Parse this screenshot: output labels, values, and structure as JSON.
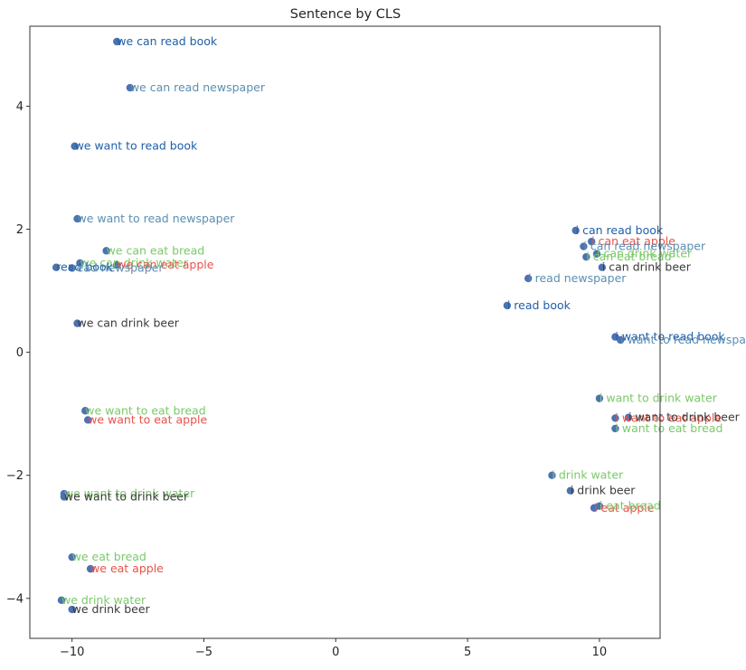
{
  "chart_data": {
    "type": "scatter",
    "title": "Sentence by CLS",
    "xlabel": "",
    "ylabel": "",
    "xlim": [
      -11.6,
      12.3
    ],
    "ylim": [
      -4.65,
      5.3
    ],
    "xticks": [
      -10,
      -5,
      0,
      5,
      10
    ],
    "yticks": [
      -4,
      -2,
      0,
      2,
      4
    ],
    "grid": false,
    "marker_color": "#4c72b0",
    "points": [
      {
        "label": "we can read book",
        "x": -8.3,
        "y": 5.05,
        "color": "#1f5fa8"
      },
      {
        "label": "we can read newspaper",
        "x": -7.8,
        "y": 4.3,
        "color": "#5b8fb0"
      },
      {
        "label": "we want to read book",
        "x": -9.9,
        "y": 3.35,
        "color": "#1f5fa8"
      },
      {
        "label": "we want to read newspaper",
        "x": -9.8,
        "y": 2.17,
        "color": "#5b8fb0"
      },
      {
        "label": "we can eat bread",
        "x": -8.7,
        "y": 1.65,
        "color": "#7cc86a"
      },
      {
        "label": "we can drink water",
        "x": -9.7,
        "y": 1.45,
        "color": "#7cc86a"
      },
      {
        "label": "we can eat apple",
        "x": -8.3,
        "y": 1.42,
        "color": "#e8534a"
      },
      {
        "label": "read book",
        "x": -10.6,
        "y": 1.38,
        "color": "#1f5fa8"
      },
      {
        "label": "read newspaper",
        "x": -10.0,
        "y": 1.37,
        "color": "#5b8fb0"
      },
      {
        "label": "we can drink beer",
        "x": -9.8,
        "y": 0.47,
        "color": "#3a3a3a"
      },
      {
        "label": "we want to eat bread",
        "x": -9.5,
        "y": -0.95,
        "color": "#7cc86a"
      },
      {
        "label": "we want to eat apple",
        "x": -9.4,
        "y": -1.1,
        "color": "#e8534a"
      },
      {
        "label": "we want to drink water",
        "x": -10.3,
        "y": -2.3,
        "color": "#7cc86a"
      },
      {
        "label": "we want to drink beer",
        "x": -10.3,
        "y": -2.35,
        "color": "#3a3a3a"
      },
      {
        "label": "we eat bread",
        "x": -10.0,
        "y": -3.33,
        "color": "#7cc86a"
      },
      {
        "label": "we eat apple",
        "x": -9.3,
        "y": -3.52,
        "color": "#e8534a"
      },
      {
        "label": "we drink water",
        "x": -10.4,
        "y": -4.03,
        "color": "#7cc86a"
      },
      {
        "label": "we drink beer",
        "x": -10.0,
        "y": -4.18,
        "color": "#3a3a3a"
      },
      {
        "label": "i can read book",
        "x": 9.1,
        "y": 1.98,
        "color": "#1f5fa8"
      },
      {
        "label": "i can eat apple",
        "x": 9.7,
        "y": 1.8,
        "color": "#e8534a"
      },
      {
        "label": "i can read newspaper",
        "x": 9.4,
        "y": 1.72,
        "color": "#5b8fb0"
      },
      {
        "label": "i can eat bread",
        "x": 9.5,
        "y": 1.55,
        "color": "#7cc86a"
      },
      {
        "label": "i can drink water",
        "x": 9.9,
        "y": 1.6,
        "color": "#7cc86a"
      },
      {
        "label": "i can drink beer",
        "x": 10.1,
        "y": 1.38,
        "color": "#3a3a3a"
      },
      {
        "label": "i read newspaper",
        "x": 7.3,
        "y": 1.2,
        "color": "#5b8fb0"
      },
      {
        "label": "i read book",
        "x": 6.5,
        "y": 0.76,
        "color": "#1f5fa8"
      },
      {
        "label": "i want to read book",
        "x": 10.6,
        "y": 0.25,
        "color": "#1f5fa8"
      },
      {
        "label": "i want to read newspaper",
        "x": 10.8,
        "y": 0.2,
        "color": "#5b8fb0"
      },
      {
        "label": "i want to drink water",
        "x": 10.0,
        "y": -0.75,
        "color": "#7cc86a"
      },
      {
        "label": "i want to eat apple",
        "x": 10.6,
        "y": -1.07,
        "color": "#e8534a"
      },
      {
        "label": "i want to drink beer",
        "x": 11.1,
        "y": -1.06,
        "color": "#3a3a3a"
      },
      {
        "label": "i want to eat bread",
        "x": 10.6,
        "y": -1.24,
        "color": "#7cc86a"
      },
      {
        "label": "i drink water",
        "x": 8.2,
        "y": -2.0,
        "color": "#7cc86a"
      },
      {
        "label": "i drink beer",
        "x": 8.9,
        "y": -2.25,
        "color": "#3a3a3a"
      },
      {
        "label": "i eat apple",
        "x": 9.8,
        "y": -2.53,
        "color": "#e8534a"
      },
      {
        "label": "i eat bread",
        "x": 10.0,
        "y": -2.5,
        "color": "#7cc86a"
      }
    ]
  }
}
